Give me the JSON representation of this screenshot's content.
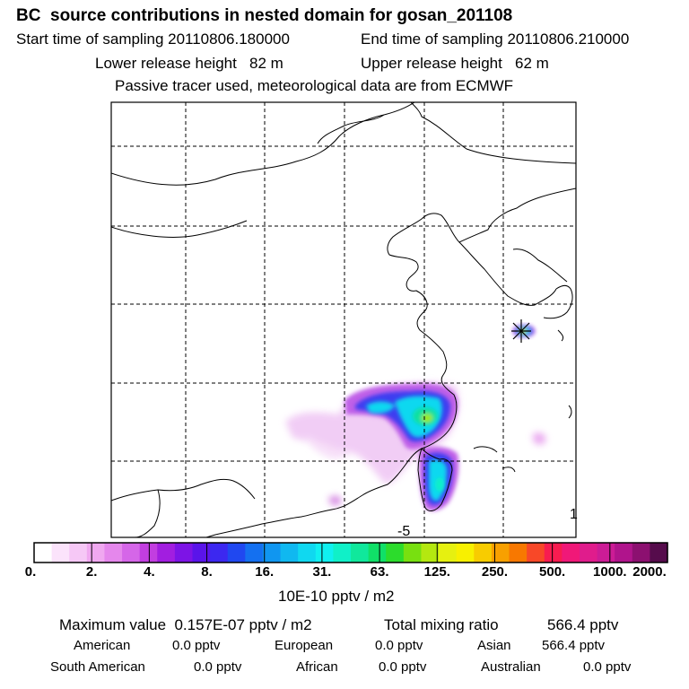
{
  "header": {
    "title": "BC  source contributions in nested domain for gosan_201108",
    "start_label": "Start time of sampling 20110806.180000",
    "end_label": "End time of sampling 20110806.210000",
    "lower_label": "Lower release height   82 m",
    "upper_label": "Upper release height   62 m",
    "note": "Passive tracer used, meteorological data are from ECMWF"
  },
  "map": {
    "corner_label": "1",
    "marker_label": "-5"
  },
  "colorbar": {
    "tick_labels": [
      "0.",
      "2.",
      "4.",
      "8.",
      "16.",
      "31.",
      "63.",
      "125.",
      "250.",
      "500.",
      "1000.",
      "2000."
    ],
    "colors": [
      "#ffffff",
      "#fbe3fb",
      "#f6c8f6",
      "#f0a8f0",
      "#e587ec",
      "#d566e8",
      "#c23ee0",
      "#a21ee0",
      "#7d14e6",
      "#5a14ea",
      "#3c28f0",
      "#2048f0",
      "#1470f0",
      "#1096f0",
      "#10b8f0",
      "#10d8f0",
      "#10f0f0",
      "#10f0c8",
      "#10e89c",
      "#10e068",
      "#2cdc2c",
      "#78e010",
      "#b4e810",
      "#e6f010",
      "#f8f000",
      "#f8cc00",
      "#f8a000",
      "#f87800",
      "#f84828",
      "#f81c50",
      "#f01878",
      "#e01c8c",
      "#cc1c96",
      "#b0148c",
      "#8c1070",
      "#560c4c"
    ],
    "unit": "10E-10 pptv / m2"
  },
  "summary": {
    "max_label": "Maximum value  0.157E-07 pptv / m2",
    "total_label": "Total mixing ratio",
    "total_value": "566.4 pptv",
    "regions": [
      {
        "name": "American",
        "value": "0.0 pptv"
      },
      {
        "name": "European",
        "value": "0.0 pptv"
      },
      {
        "name": "Asian",
        "value": "566.4 pptv"
      },
      {
        "name": "South American",
        "value": "0.0 pptv"
      },
      {
        "name": "African",
        "value": "0.0 pptv"
      },
      {
        "name": "Australian",
        "value": "0.0 pptv"
      }
    ]
  }
}
